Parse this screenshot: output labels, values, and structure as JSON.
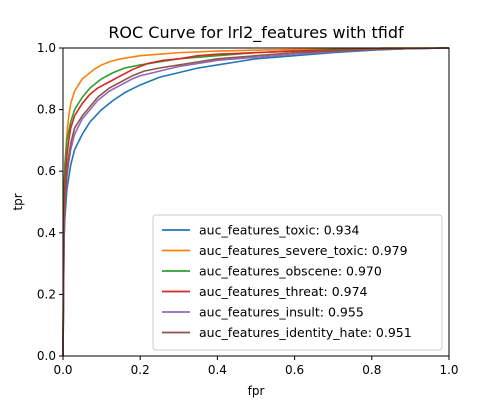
{
  "chart_data": {
    "type": "line",
    "title": "ROC Curve for lrl2_features with tfidf",
    "xlabel": "fpr",
    "ylabel": "tpr",
    "xlim": [
      0.0,
      1.0
    ],
    "ylim": [
      0.0,
      1.0
    ],
    "xticks": [
      "0.0",
      "0.2",
      "0.4",
      "0.6",
      "0.8",
      "1.0"
    ],
    "yticks": [
      "0.0",
      "0.2",
      "0.4",
      "0.6",
      "0.8",
      "1.0"
    ],
    "grid": false,
    "legend_position": "lower-right",
    "series": [
      {
        "name": "auc_features_toxic: 0.934",
        "color": "#1f77b4",
        "x": [
          0,
          0.002,
          0.005,
          0.01,
          0.02,
          0.03,
          0.05,
          0.07,
          0.1,
          0.13,
          0.16,
          0.2,
          0.25,
          0.3,
          0.35,
          0.4,
          0.45,
          0.5,
          0.6,
          0.7,
          0.8,
          0.9,
          1.0
        ],
        "y": [
          0,
          0.35,
          0.45,
          0.54,
          0.62,
          0.67,
          0.72,
          0.76,
          0.8,
          0.83,
          0.855,
          0.88,
          0.905,
          0.92,
          0.935,
          0.945,
          0.955,
          0.965,
          0.975,
          0.985,
          0.993,
          0.998,
          1.0
        ]
      },
      {
        "name": "auc_features_severe_toxic: 0.979",
        "color": "#ff7f0e",
        "x": [
          0,
          0.002,
          0.005,
          0.01,
          0.015,
          0.02,
          0.03,
          0.04,
          0.05,
          0.06,
          0.08,
          0.1,
          0.12,
          0.15,
          0.2,
          0.25,
          0.3,
          0.4,
          0.5,
          0.6,
          0.8,
          0.83,
          1.0
        ],
        "y": [
          0,
          0.5,
          0.62,
          0.72,
          0.78,
          0.82,
          0.86,
          0.88,
          0.9,
          0.91,
          0.93,
          0.945,
          0.955,
          0.965,
          0.975,
          0.98,
          0.985,
          0.99,
          0.993,
          0.995,
          0.997,
          1.0,
          1.0
        ]
      },
      {
        "name": "auc_features_obscene: 0.970",
        "color": "#2ca02c",
        "x": [
          0,
          0.002,
          0.005,
          0.01,
          0.02,
          0.03,
          0.05,
          0.07,
          0.1,
          0.13,
          0.16,
          0.2,
          0.25,
          0.3,
          0.4,
          0.5,
          0.6,
          0.7,
          0.8,
          1.0
        ],
        "y": [
          0,
          0.5,
          0.62,
          0.7,
          0.76,
          0.8,
          0.84,
          0.87,
          0.9,
          0.92,
          0.935,
          0.945,
          0.955,
          0.965,
          0.975,
          0.985,
          0.99,
          0.995,
          0.998,
          1.0
        ]
      },
      {
        "name": "auc_features_threat: 0.974",
        "color": "#d62728",
        "x": [
          0,
          0.003,
          0.006,
          0.01,
          0.015,
          0.02,
          0.03,
          0.04,
          0.05,
          0.07,
          0.09,
          0.12,
          0.15,
          0.18,
          0.22,
          0.26,
          0.3,
          0.35,
          0.4,
          0.5,
          0.6,
          0.7,
          0.8,
          0.9,
          1.0
        ],
        "y": [
          0,
          0.45,
          0.58,
          0.65,
          0.7,
          0.74,
          0.78,
          0.8,
          0.82,
          0.85,
          0.87,
          0.89,
          0.91,
          0.93,
          0.95,
          0.96,
          0.965,
          0.975,
          0.98,
          0.985,
          0.99,
          0.993,
          0.996,
          0.998,
          1.0
        ]
      },
      {
        "name": "auc_features_insult: 0.955",
        "color": "#9467bd",
        "x": [
          0,
          0.003,
          0.006,
          0.01,
          0.015,
          0.02,
          0.03,
          0.05,
          0.07,
          0.09,
          0.12,
          0.15,
          0.18,
          0.2,
          0.25,
          0.3,
          0.35,
          0.4,
          0.5,
          0.6,
          0.7,
          0.8,
          0.9,
          1.0
        ],
        "y": [
          0,
          0.4,
          0.5,
          0.58,
          0.63,
          0.67,
          0.72,
          0.77,
          0.8,
          0.83,
          0.86,
          0.88,
          0.9,
          0.91,
          0.925,
          0.94,
          0.95,
          0.96,
          0.97,
          0.98,
          0.988,
          0.995,
          0.998,
          1.0
        ]
      },
      {
        "name": "auc_features_identity_hate: 0.951",
        "color": "#8c564b",
        "x": [
          0,
          0.003,
          0.006,
          0.01,
          0.015,
          0.02,
          0.03,
          0.05,
          0.07,
          0.09,
          0.12,
          0.15,
          0.18,
          0.21,
          0.25,
          0.3,
          0.35,
          0.4,
          0.5,
          0.6,
          0.7,
          0.8,
          0.9,
          1.0
        ],
        "y": [
          0,
          0.42,
          0.52,
          0.6,
          0.65,
          0.69,
          0.74,
          0.78,
          0.81,
          0.84,
          0.87,
          0.89,
          0.91,
          0.925,
          0.935,
          0.945,
          0.955,
          0.965,
          0.975,
          0.985,
          0.99,
          0.995,
          0.998,
          1.0
        ]
      }
    ]
  }
}
